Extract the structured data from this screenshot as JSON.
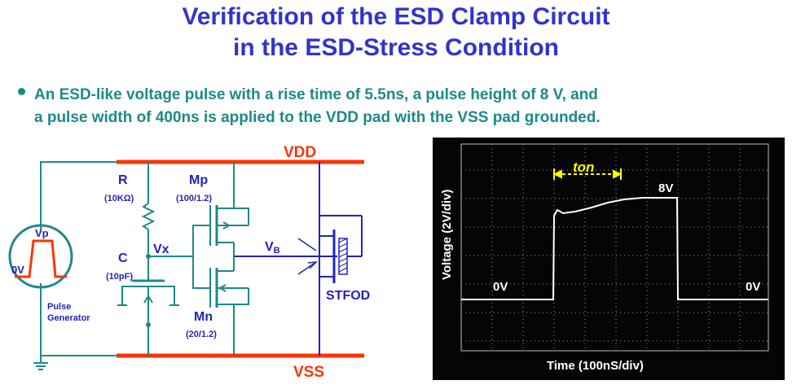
{
  "title": {
    "line1": "Verification of the ESD Clamp Circuit",
    "line2": "in the ESD-Stress Condition"
  },
  "bullet": {
    "line1": "An ESD-like voltage pulse with a rise time of 5.5ns, a pulse height of 8 V, and",
    "line2": "a pulse width of 400ns is applied to the VDD pad with the VSS pad grounded."
  },
  "circuit": {
    "vdd": "VDD",
    "vss": "VSS",
    "r_label": "R",
    "r_value": "(10KΩ)",
    "c_label": "C",
    "c_value": "(10pF)",
    "vx": "Vx",
    "mp_label": "Mp",
    "mp_size": "(100/1.2)",
    "mn_label": "Mn",
    "mn_size": "(20/1.2)",
    "vb_main": "V",
    "vb_sub": "B",
    "stfod": "STFOD",
    "generator": {
      "vp": "Vp",
      "zero": "0V",
      "label_line1": "Pulse",
      "label_line2": "Generator"
    }
  },
  "scope": {
    "ylabel": "Voltage (2V/div)",
    "xlabel": "Time (100nS/div)",
    "ton": "ton",
    "high": "8V",
    "zero_left": "0V",
    "zero_right": "0V"
  },
  "colors": {
    "title": "#3333cc",
    "text": "#1c8a86",
    "rail": "#ff3300",
    "wire_teal": "#1c8a86",
    "wire_blue": "#2222bb",
    "scope_bg": "#050505",
    "ton_marker": "#ffff00"
  }
}
